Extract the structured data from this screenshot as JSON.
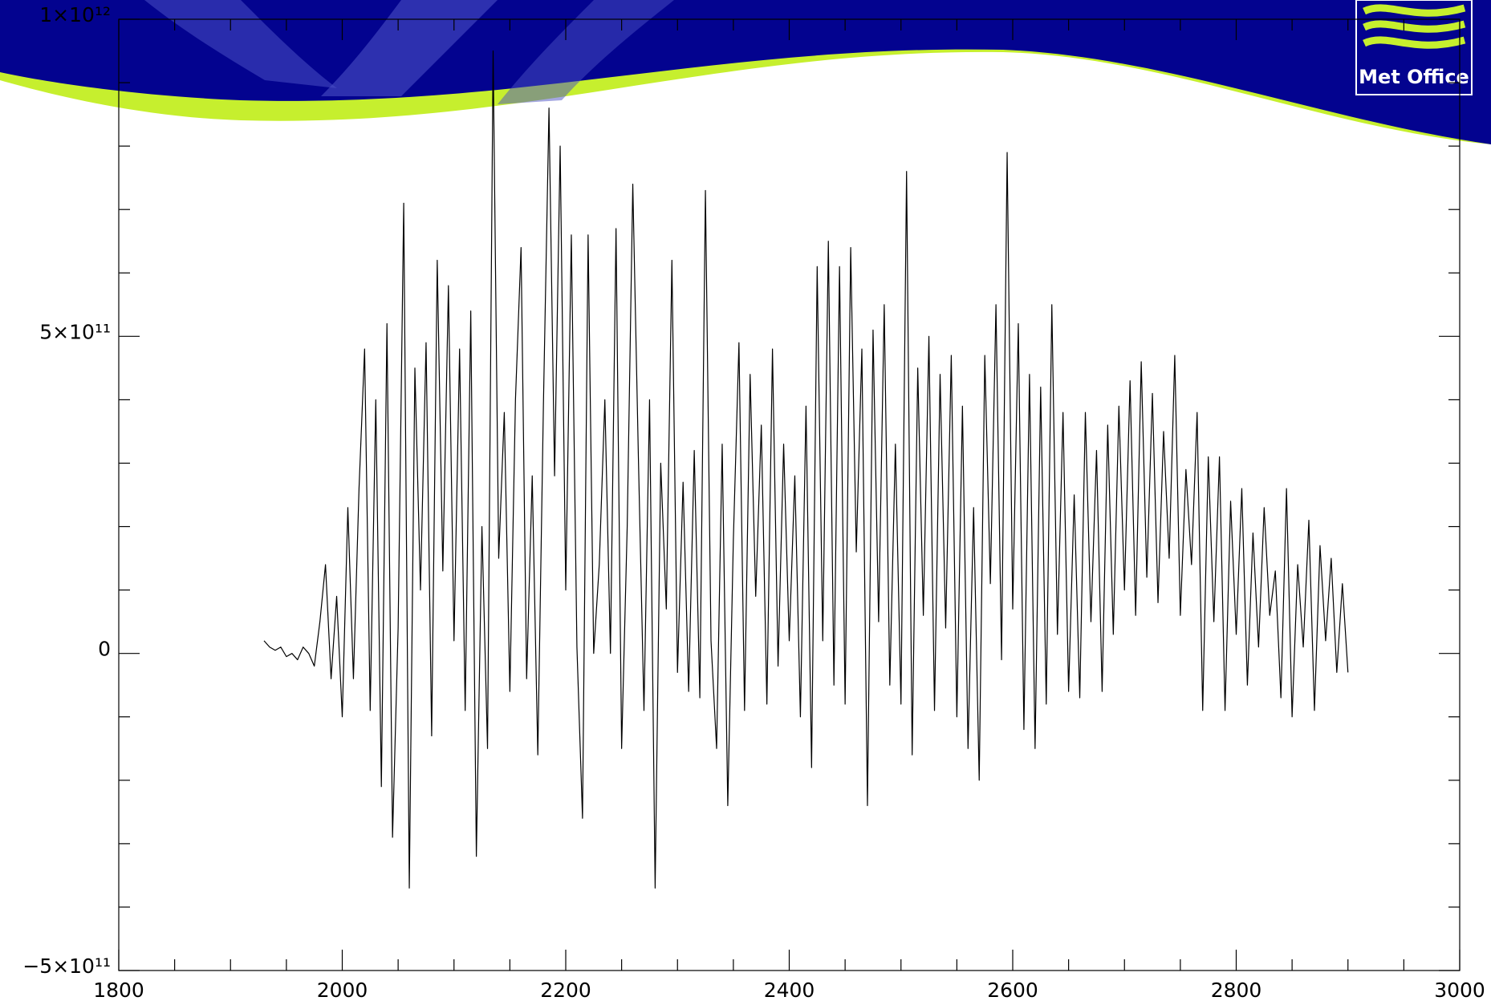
{
  "header": {
    "logo_text": "Met Office"
  },
  "chart_data": {
    "type": "line",
    "x": [
      1930,
      1935,
      1940,
      1945,
      1950,
      1955,
      1960,
      1965,
      1970,
      1975,
      1980,
      1985,
      1990,
      1995,
      2000,
      2005,
      2010,
      2015,
      2020,
      2025,
      2030,
      2035,
      2040,
      2045,
      2050,
      2055,
      2060,
      2065,
      2070,
      2075,
      2080,
      2085,
      2090,
      2095,
      2100,
      2105,
      2110,
      2115,
      2120,
      2125,
      2130,
      2135,
      2140,
      2145,
      2150,
      2155,
      2160,
      2165,
      2170,
      2175,
      2180,
      2185,
      2190,
      2195,
      2200,
      2205,
      2210,
      2215,
      2220,
      2225,
      2230,
      2235,
      2240,
      2245,
      2250,
      2255,
      2260,
      2265,
      2270,
      2275,
      2280,
      2285,
      2290,
      2295,
      2300,
      2305,
      2310,
      2315,
      2320,
      2325,
      2330,
      2335,
      2340,
      2345,
      2350,
      2355,
      2360,
      2365,
      2370,
      2375,
      2380,
      2385,
      2390,
      2395,
      2400,
      2405,
      2410,
      2415,
      2420,
      2425,
      2430,
      2435,
      2440,
      2445,
      2450,
      2455,
      2460,
      2465,
      2470,
      2475,
      2480,
      2485,
      2490,
      2495,
      2500,
      2505,
      2510,
      2515,
      2520,
      2525,
      2530,
      2535,
      2540,
      2545,
      2550,
      2555,
      2560,
      2565,
      2570,
      2575,
      2580,
      2585,
      2590,
      2595,
      2600,
      2605,
      2610,
      2615,
      2620,
      2625,
      2630,
      2635,
      2640,
      2645,
      2650,
      2655,
      2660,
      2665,
      2670,
      2675,
      2680,
      2685,
      2690,
      2695,
      2700,
      2705,
      2710,
      2715,
      2720,
      2725,
      2730,
      2735,
      2740,
      2745,
      2750,
      2755,
      2760,
      2765,
      2770,
      2775,
      2780,
      2785,
      2790,
      2795,
      2800,
      2805,
      2810,
      2815,
      2820,
      2825,
      2830,
      2835,
      2840,
      2845,
      2850,
      2855,
      2860,
      2865,
      2870,
      2875,
      2880,
      2885,
      2890,
      2895,
      2900
    ],
    "series": [
      {
        "color": "#000000",
        "values": [
          20000000000.0,
          10000000000.0,
          5000000000.0,
          10000000000.0,
          -5000000000.0,
          0.0,
          -10000000000.0,
          10000000000.0,
          0.0,
          -20000000000.0,
          50000000000.0,
          140000000000.0,
          -40000000000.0,
          90000000000.0,
          -100000000000.0,
          230000000000.0,
          -40000000000.0,
          260000000000.0,
          480000000000.0,
          -90000000000.0,
          400000000000.0,
          -210000000000.0,
          520000000000.0,
          -290000000000.0,
          40000000000.0,
          710000000000.0,
          -370000000000.0,
          450000000000.0,
          100000000000.0,
          490000000000.0,
          -130000000000.0,
          620000000000.0,
          130000000000.0,
          580000000000.0,
          20000000000.0,
          480000000000.0,
          -90000000000.0,
          540000000000.0,
          -320000000000.0,
          200000000000.0,
          -150000000000.0,
          950000000000.0,
          150000000000.0,
          380000000000.0,
          -60000000000.0,
          400000000000.0,
          640000000000.0,
          -40000000000.0,
          280000000000.0,
          -160000000000.0,
          390000000000.0,
          860000000000.0,
          280000000000.0,
          800000000000.0,
          100000000000.0,
          660000000000.0,
          10000000000.0,
          -260000000000.0,
          660000000000.0,
          0.0,
          140000000000.0,
          400000000000.0,
          0.0,
          670000000000.0,
          -150000000000.0,
          200000000000.0,
          740000000000.0,
          310000000000.0,
          -90000000000.0,
          400000000000.0,
          -370000000000.0,
          300000000000.0,
          70000000000.0,
          620000000000.0,
          -30000000000.0,
          270000000000.0,
          -60000000000.0,
          320000000000.0,
          -70000000000.0,
          730000000000.0,
          20000000000.0,
          -150000000000.0,
          330000000000.0,
          -240000000000.0,
          180000000000.0,
          490000000000.0,
          -90000000000.0,
          440000000000.0,
          90000000000.0,
          360000000000.0,
          -80000000000.0,
          480000000000.0,
          -20000000000.0,
          330000000000.0,
          20000000000.0,
          280000000000.0,
          -100000000000.0,
          390000000000.0,
          -180000000000.0,
          610000000000.0,
          20000000000.0,
          650000000000.0,
          -50000000000.0,
          610000000000.0,
          -80000000000.0,
          640000000000.0,
          160000000000.0,
          480000000000.0,
          -240000000000.0,
          510000000000.0,
          50000000000.0,
          550000000000.0,
          -50000000000.0,
          330000000000.0,
          -80000000000.0,
          760000000000.0,
          -160000000000.0,
          450000000000.0,
          60000000000.0,
          500000000000.0,
          -90000000000.0,
          440000000000.0,
          40000000000.0,
          470000000000.0,
          -100000000000.0,
          390000000000.0,
          -150000000000.0,
          230000000000.0,
          -200000000000.0,
          470000000000.0,
          110000000000.0,
          550000000000.0,
          -10000000000.0,
          790000000000.0,
          70000000000.0,
          520000000000.0,
          -120000000000.0,
          440000000000.0,
          -150000000000.0,
          420000000000.0,
          -80000000000.0,
          550000000000.0,
          30000000000.0,
          380000000000.0,
          -60000000000.0,
          250000000000.0,
          -70000000000.0,
          380000000000.0,
          50000000000.0,
          320000000000.0,
          -60000000000.0,
          360000000000.0,
          30000000000.0,
          390000000000.0,
          100000000000.0,
          430000000000.0,
          60000000000.0,
          460000000000.0,
          120000000000.0,
          410000000000.0,
          80000000000.0,
          350000000000.0,
          150000000000.0,
          470000000000.0,
          60000000000.0,
          290000000000.0,
          140000000000.0,
          380000000000.0,
          -90000000000.0,
          310000000000.0,
          50000000000.0,
          310000000000.0,
          -90000000000.0,
          240000000000.0,
          30000000000.0,
          260000000000.0,
          -50000000000.0,
          190000000000.0,
          10000000000.0,
          230000000000.0,
          60000000000.0,
          130000000000.0,
          -70000000000.0,
          260000000000.0,
          -100000000000.0,
          140000000000.0,
          10000000000.0,
          210000000000.0,
          -90000000000.0,
          170000000000.0,
          20000000000.0,
          150000000000.0,
          -30000000000.0,
          110000000000.0,
          -30000000000.0
        ]
      }
    ],
    "xlim": [
      1800,
      3000
    ],
    "xticks": [
      1800,
      2000,
      2200,
      2400,
      2600,
      2800,
      3000
    ],
    "x_minor_ticks": [
      1850,
      1900,
      1950,
      2050,
      2100,
      2150,
      2250,
      2300,
      2350,
      2450,
      2500,
      2550,
      2650,
      2700,
      2750,
      2850,
      2900,
      2950
    ],
    "ylim": [
      -500000000000.0,
      1000000000000.0
    ],
    "yticks": [
      {
        "value": -500000000000.0,
        "label": "−5×10¹¹"
      },
      0,
      {
        "value": 500000000000.0,
        "label": "5×10¹¹"
      },
      {
        "value": 1000000000000.0,
        "label": "1×10¹²"
      }
    ],
    "y_minor_ticks": [
      -400000000000.0,
      -300000000000.0,
      -200000000000.0,
      -100000000000.0,
      100000000000.0,
      200000000000.0,
      300000000000.0,
      400000000000.0,
      600000000000.0,
      700000000000.0,
      800000000000.0,
      900000000000.0
    ]
  }
}
